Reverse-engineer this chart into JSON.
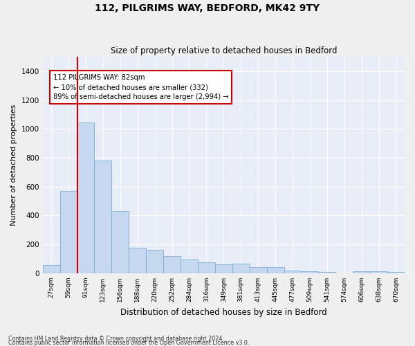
{
  "title": "112, PILGRIMS WAY, BEDFORD, MK42 9TY",
  "subtitle": "Size of property relative to detached houses in Bedford",
  "xlabel": "Distribution of detached houses by size in Bedford",
  "ylabel": "Number of detached properties",
  "bar_color": "#c5d8f0",
  "bar_edge_color": "#7aafd4",
  "bg_color": "#e8eef8",
  "grid_color": "#ffffff",
  "annotation_box_color": "#cc0000",
  "annotation_text": "112 PILGRIMS WAY: 82sqm\n← 10% of detached houses are smaller (332)\n89% of semi-detached houses are larger (2,994) →",
  "vline_x_index": 1.5,
  "vline_color": "#cc0000",
  "categories": [
    "27sqm",
    "59sqm",
    "91sqm",
    "123sqm",
    "156sqm",
    "188sqm",
    "220sqm",
    "252sqm",
    "284sqm",
    "316sqm",
    "349sqm",
    "381sqm",
    "413sqm",
    "445sqm",
    "477sqm",
    "509sqm",
    "541sqm",
    "574sqm",
    "606sqm",
    "638sqm",
    "670sqm"
  ],
  "values": [
    55,
    570,
    1045,
    780,
    430,
    175,
    165,
    120,
    95,
    75,
    60,
    65,
    45,
    45,
    20,
    15,
    10,
    0,
    15,
    15,
    10
  ],
  "ylim": [
    0,
    1500
  ],
  "yticks": [
    0,
    200,
    400,
    600,
    800,
    1000,
    1200,
    1400
  ],
  "footnote1": "Contains HM Land Registry data © Crown copyright and database right 2024.",
  "footnote2": "Contains public sector information licensed under the Open Government Licence v3.0."
}
